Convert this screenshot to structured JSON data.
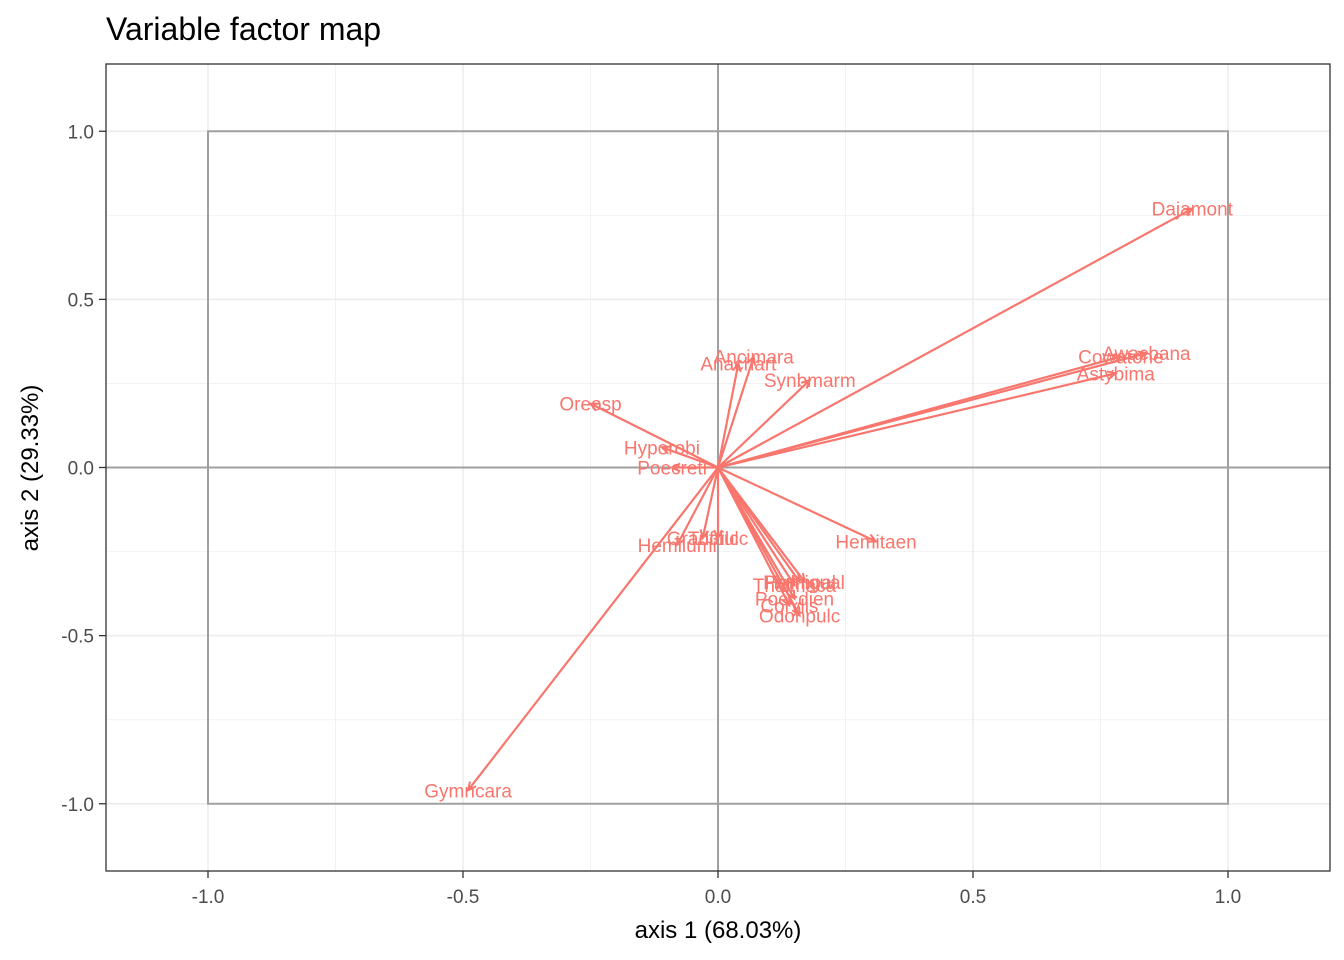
{
  "chart_data": {
    "type": "scatter",
    "title": "Variable factor map",
    "xlabel": "axis 1 (68.03%)",
    "ylabel": "axis 2 (29.33%)",
    "xlim": [
      -1.2,
      1.2
    ],
    "ylim": [
      -1.2,
      1.2
    ],
    "x_ticks": [
      "-1.0",
      "-0.5",
      "0.0",
      "0.5",
      "1.0"
    ],
    "y_ticks": [
      "-1.0",
      "-0.5",
      "0.0",
      "0.5",
      "1.0"
    ],
    "grid": true,
    "unit_box": [
      -1,
      1
    ],
    "arrow_color": "#F8766D",
    "variables": [
      {
        "label": "Dajamont",
        "x": 0.93,
        "y": 0.77
      },
      {
        "label": "Awacbana",
        "x": 0.84,
        "y": 0.34
      },
      {
        "label": "Cowatone",
        "x": 0.79,
        "y": 0.33
      },
      {
        "label": "Astybima",
        "x": 0.78,
        "y": 0.28
      },
      {
        "label": "Ancimara",
        "x": 0.07,
        "y": 0.33
      },
      {
        "label": "Anachart",
        "x": 0.04,
        "y": 0.31
      },
      {
        "label": "Synbmarm",
        "x": 0.18,
        "y": 0.26
      },
      {
        "label": "Oreosp",
        "x": -0.25,
        "y": 0.19
      },
      {
        "label": "Hyporobi",
        "x": -0.11,
        "y": 0.06
      },
      {
        "label": "Poecreti",
        "x": -0.09,
        "y": 0.0
      },
      {
        "label": "Gradfulc",
        "x": -0.03,
        "y": -0.21
      },
      {
        "label": "Tricfulc",
        "x": 0.0,
        "y": -0.21
      },
      {
        "label": "Hemilumi",
        "x": -0.08,
        "y": -0.23
      },
      {
        "label": "Hemitaen",
        "x": 0.31,
        "y": -0.22
      },
      {
        "label": "Phiimoal",
        "x": 0.16,
        "y": -0.34
      },
      {
        "label": "Hemigual",
        "x": 0.17,
        "y": -0.34
      },
      {
        "label": "Thalmaca",
        "x": 0.15,
        "y": -0.35
      },
      {
        "label": "Poecdien",
        "x": 0.15,
        "y": -0.39
      },
      {
        "label": "Corylis",
        "x": 0.14,
        "y": -0.41
      },
      {
        "label": "Odonpulc",
        "x": 0.16,
        "y": -0.44
      },
      {
        "label": "Gymncara",
        "x": -0.49,
        "y": -0.96
      }
    ]
  }
}
